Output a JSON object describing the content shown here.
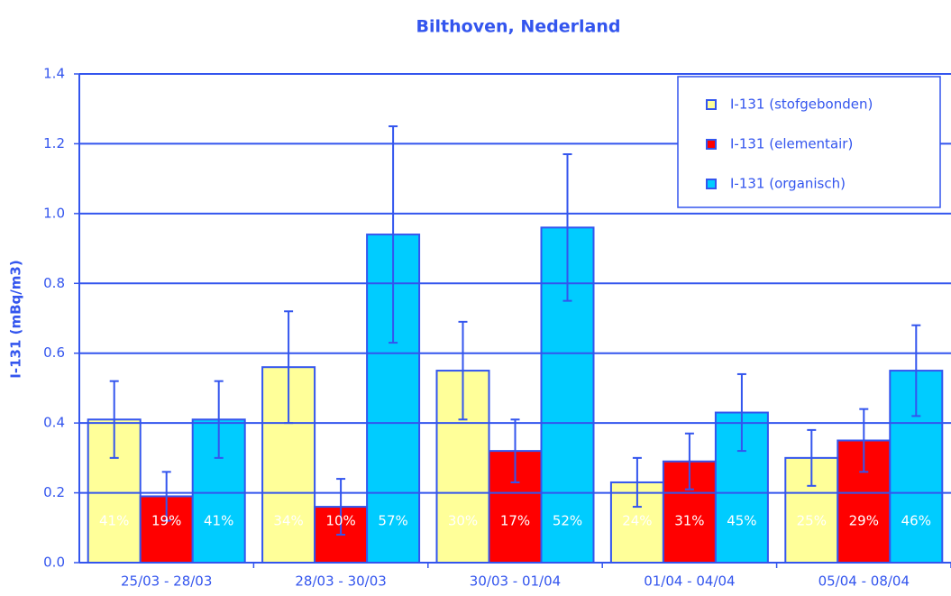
{
  "chart_data": {
    "type": "bar",
    "title": "Bilthoven, Nederland",
    "y_label": "I-131 (mBq/m3)",
    "categories": [
      "25/03 - 28/03",
      "28/03 - 30/03",
      "30/03 - 01/04",
      "01/04 - 04/04",
      "05/04 - 08/04"
    ],
    "series": [
      {
        "name": "I-131 (stofgebonden)",
        "color": "#ffff99",
        "values": [
          0.41,
          0.56,
          0.55,
          0.23,
          0.3
        ],
        "errors": [
          0.11,
          0.16,
          0.14,
          0.07,
          0.08
        ],
        "labels": [
          "41%",
          "34%",
          "30%",
          "24%",
          "25%"
        ]
      },
      {
        "name": "I-131 (elementair)",
        "color": "#ff0000",
        "values": [
          0.19,
          0.16,
          0.32,
          0.29,
          0.35
        ],
        "errors": [
          0.07,
          0.08,
          0.09,
          0.08,
          0.09
        ],
        "labels": [
          "19%",
          "10%",
          "17%",
          "31%",
          "29%"
        ]
      },
      {
        "name": "I-131 (organisch)",
        "color": "#00ccff",
        "values": [
          0.41,
          0.94,
          0.96,
          0.43,
          0.55
        ],
        "errors": [
          0.11,
          0.31,
          0.21,
          0.11,
          0.13
        ],
        "labels": [
          "41%",
          "57%",
          "52%",
          "45%",
          "46%"
        ]
      }
    ],
    "ylim": [
      0,
      1.4
    ],
    "yticks": [
      {
        "value": 0,
        "label": "0.0"
      },
      0.2,
      0.4,
      0.6,
      0.8,
      {
        "value": 1,
        "label": "1.0"
      },
      1.2,
      1.4
    ],
    "grid": true,
    "legend": "upper right"
  }
}
